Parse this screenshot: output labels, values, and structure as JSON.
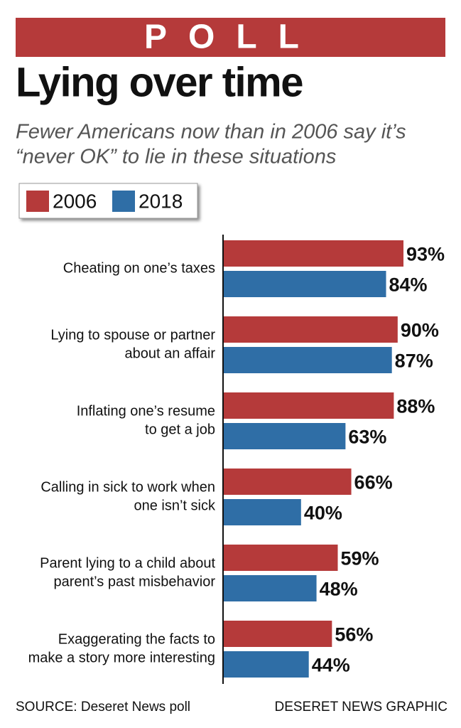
{
  "chart_data": {
    "type": "bar",
    "orientation": "horizontal",
    "banner": "POLL",
    "title": "Lying over time",
    "subtitle": [
      "Fewer Americans now than in 2006 say it’s",
      "“never OK” to lie in these situations"
    ],
    "categories": [
      [
        "Cheating on one’s taxes"
      ],
      [
        "Lying to spouse or partner",
        "about an affair"
      ],
      [
        "Inflating one’s resume",
        "to get a job"
      ],
      [
        "Calling in sick to work when",
        "one isn’t sick"
      ],
      [
        "Parent lying to a child about",
        "parent’s past misbehavior"
      ],
      [
        "Exaggerating the facts to",
        "make a story more interesting"
      ]
    ],
    "series": [
      {
        "name": "2006",
        "color": "#b53a3a",
        "values": [
          93,
          90,
          88,
          66,
          59,
          56
        ],
        "value_labels": [
          "93%",
          "90%",
          "88%",
          "66%",
          "59%",
          "56%"
        ]
      },
      {
        "name": "2018",
        "color": "#2f6ea6",
        "values": [
          84,
          87,
          63,
          40,
          48,
          44
        ],
        "value_labels": [
          "84%",
          "87%",
          "63%",
          "40%",
          "48%",
          "44%"
        ]
      }
    ],
    "source": "SOURCE: Deseret News poll",
    "credit": "DESERET NEWS GRAPHIC"
  }
}
